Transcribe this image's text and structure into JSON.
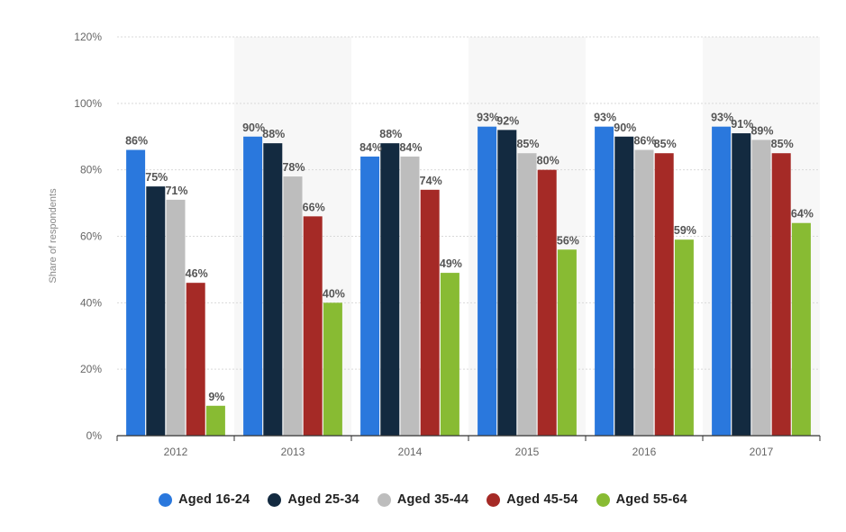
{
  "chart_data": {
    "type": "bar",
    "categories": [
      "2012",
      "2013",
      "2014",
      "2015",
      "2016",
      "2017"
    ],
    "series": [
      {
        "name": "Aged 16-24",
        "color": "#2a78dd",
        "values": [
          86,
          90,
          84,
          93,
          93,
          93
        ],
        "labels": [
          "86%",
          "90%",
          "84%",
          "93%",
          "93%",
          "93%"
        ]
      },
      {
        "name": "Aged 25-34",
        "color": "#132a40",
        "values": [
          75,
          88,
          88,
          92,
          90,
          91
        ],
        "labels": [
          "75%",
          "88%",
          "88%",
          "92%",
          "90%",
          "91%"
        ]
      },
      {
        "name": "Aged 35-44",
        "color": "#bdbdbd",
        "values": [
          71,
          78,
          84,
          85,
          86,
          89
        ],
        "labels": [
          "71%",
          "78%",
          "84%",
          "85%",
          "86%",
          "89%"
        ]
      },
      {
        "name": "Aged 45-54",
        "color": "#a52a26",
        "values": [
          46,
          66,
          74,
          80,
          85,
          85
        ],
        "labels": [
          "46%",
          "66%",
          "74%",
          "80%",
          "85%",
          "85%"
        ]
      },
      {
        "name": "Aged 55-64",
        "color": "#88bb33",
        "values": [
          9,
          40,
          49,
          56,
          59,
          64
        ],
        "labels": [
          "9%",
          "40%",
          "49%",
          "56%",
          "59%",
          "64%"
        ]
      }
    ],
    "ylabel": "Share of respondents",
    "xlabel": "",
    "ylim": [
      0,
      120
    ],
    "yticks": [
      0,
      20,
      40,
      60,
      80,
      100,
      120
    ],
    "ytick_labels": [
      "0%",
      "20%",
      "40%",
      "60%",
      "80%",
      "100%",
      "120%"
    ],
    "grid": true,
    "legend_position": "bottom-center"
  }
}
